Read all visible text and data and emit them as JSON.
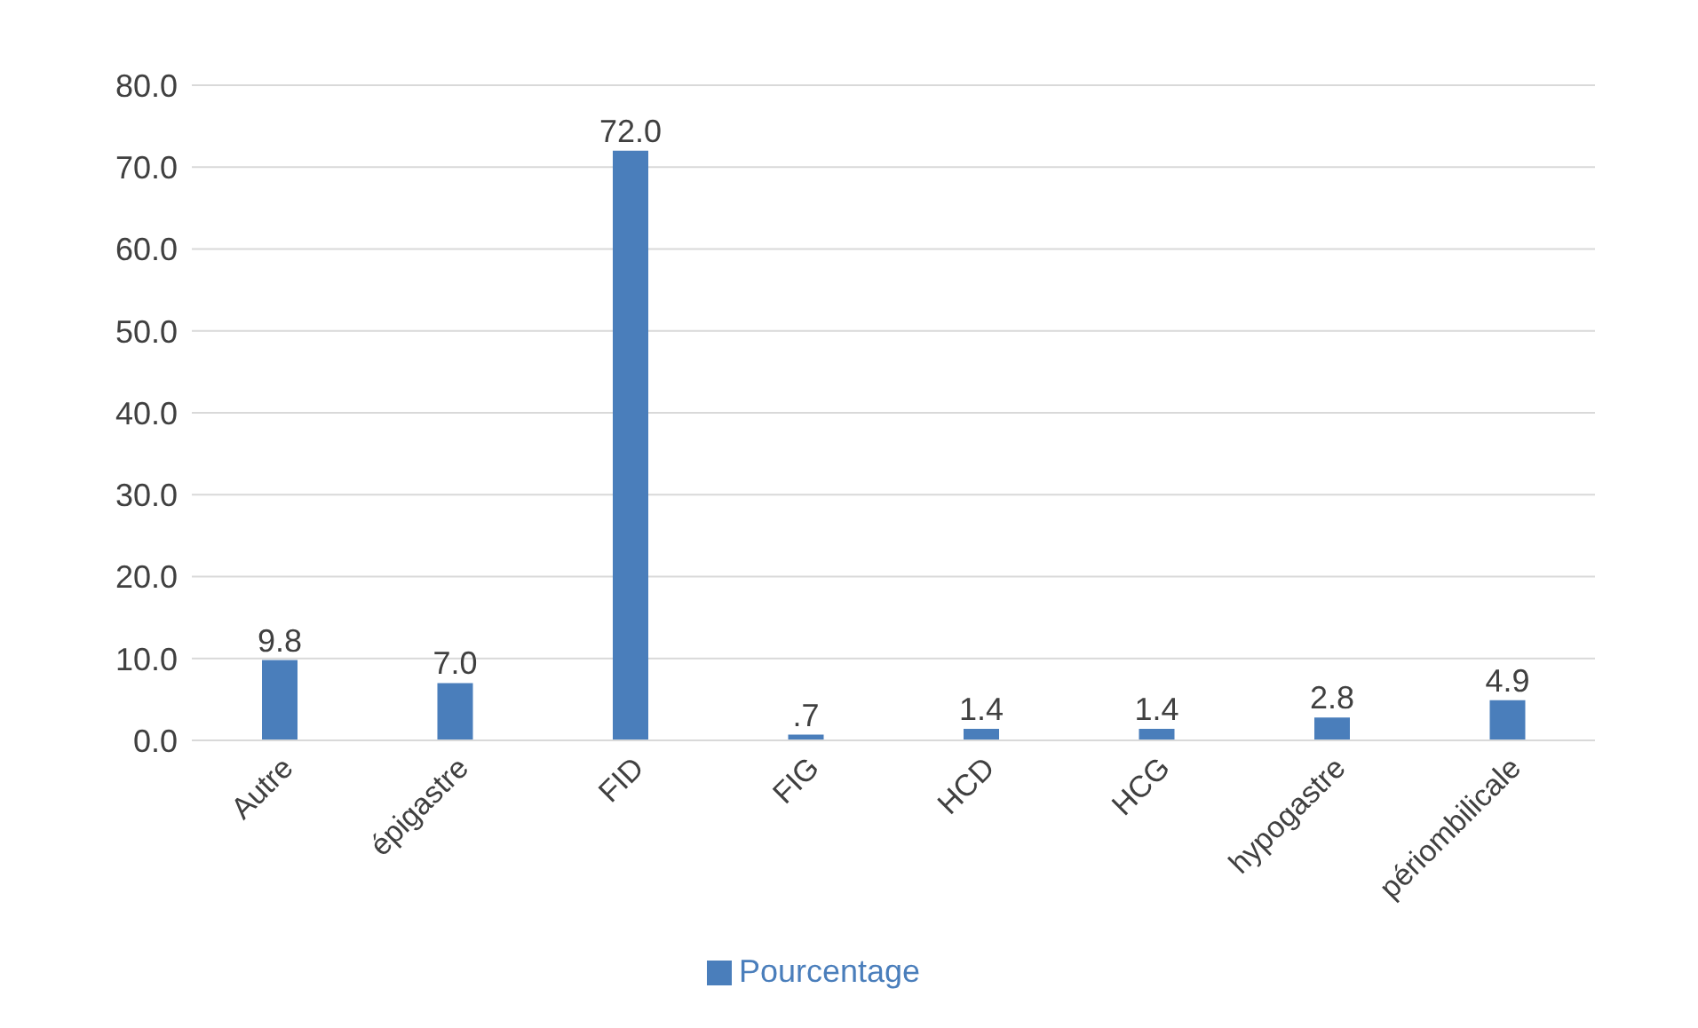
{
  "chart_data": {
    "type": "bar",
    "categories": [
      "Autre",
      "épigastre",
      "FID",
      "FIG",
      "HCD",
      "HCG",
      "hypogastre",
      "périombilicale"
    ],
    "series": [
      {
        "name": "Pourcentage",
        "color": "#4a7ebb",
        "values": [
          9.8,
          7.0,
          72.0,
          0.7,
          1.4,
          1.4,
          2.8,
          4.9
        ],
        "value_labels": [
          "9.8",
          "7.0",
          "72.0",
          ".7",
          "1.4",
          "1.4",
          "2.8",
          "4.9"
        ]
      }
    ],
    "ylim": [
      0,
      80
    ],
    "yticks": [
      {
        "value": 0,
        "label": "0.0"
      },
      {
        "value": 10,
        "label": "10.0"
      },
      {
        "value": 20,
        "label": "20.0"
      },
      {
        "value": 30,
        "label": "30.0"
      },
      {
        "value": 40,
        "label": "40.0"
      },
      {
        "value": 50,
        "label": "50.0"
      },
      {
        "value": 60,
        "label": "60.0"
      },
      {
        "value": 70,
        "label": "70.0"
      },
      {
        "value": 80,
        "label": "80.0"
      }
    ],
    "grid": "y",
    "legend": "bottom"
  }
}
